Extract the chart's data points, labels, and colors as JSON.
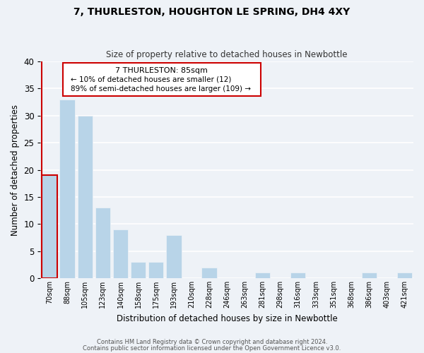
{
  "title": "7, THURLESTON, HOUGHTON LE SPRING, DH4 4XY",
  "subtitle": "Size of property relative to detached houses in Newbottle",
  "xlabel": "Distribution of detached houses by size in Newbottle",
  "ylabel": "Number of detached properties",
  "bin_labels": [
    "70sqm",
    "88sqm",
    "105sqm",
    "123sqm",
    "140sqm",
    "158sqm",
    "175sqm",
    "193sqm",
    "210sqm",
    "228sqm",
    "246sqm",
    "263sqm",
    "281sqm",
    "298sqm",
    "316sqm",
    "333sqm",
    "351sqm",
    "368sqm",
    "386sqm",
    "403sqm",
    "421sqm"
  ],
  "bar_values": [
    19,
    33,
    30,
    13,
    9,
    3,
    3,
    8,
    0,
    2,
    0,
    0,
    1,
    0,
    1,
    0,
    0,
    0,
    1,
    0,
    1
  ],
  "highlight_bar_index": 0,
  "bar_color": "#b8d4e8",
  "highlight_color": "#cc0000",
  "ylim": [
    0,
    40
  ],
  "yticks": [
    0,
    5,
    10,
    15,
    20,
    25,
    30,
    35,
    40
  ],
  "annotation_title": "7 THURLESTON: 85sqm",
  "annotation_line1": "← 10% of detached houses are smaller (12)",
  "annotation_line2": "89% of semi-detached houses are larger (109) →",
  "footer_line1": "Contains HM Land Registry data © Crown copyright and database right 2024.",
  "footer_line2": "Contains public sector information licensed under the Open Government Licence v3.0.",
  "background_color": "#eef2f7"
}
